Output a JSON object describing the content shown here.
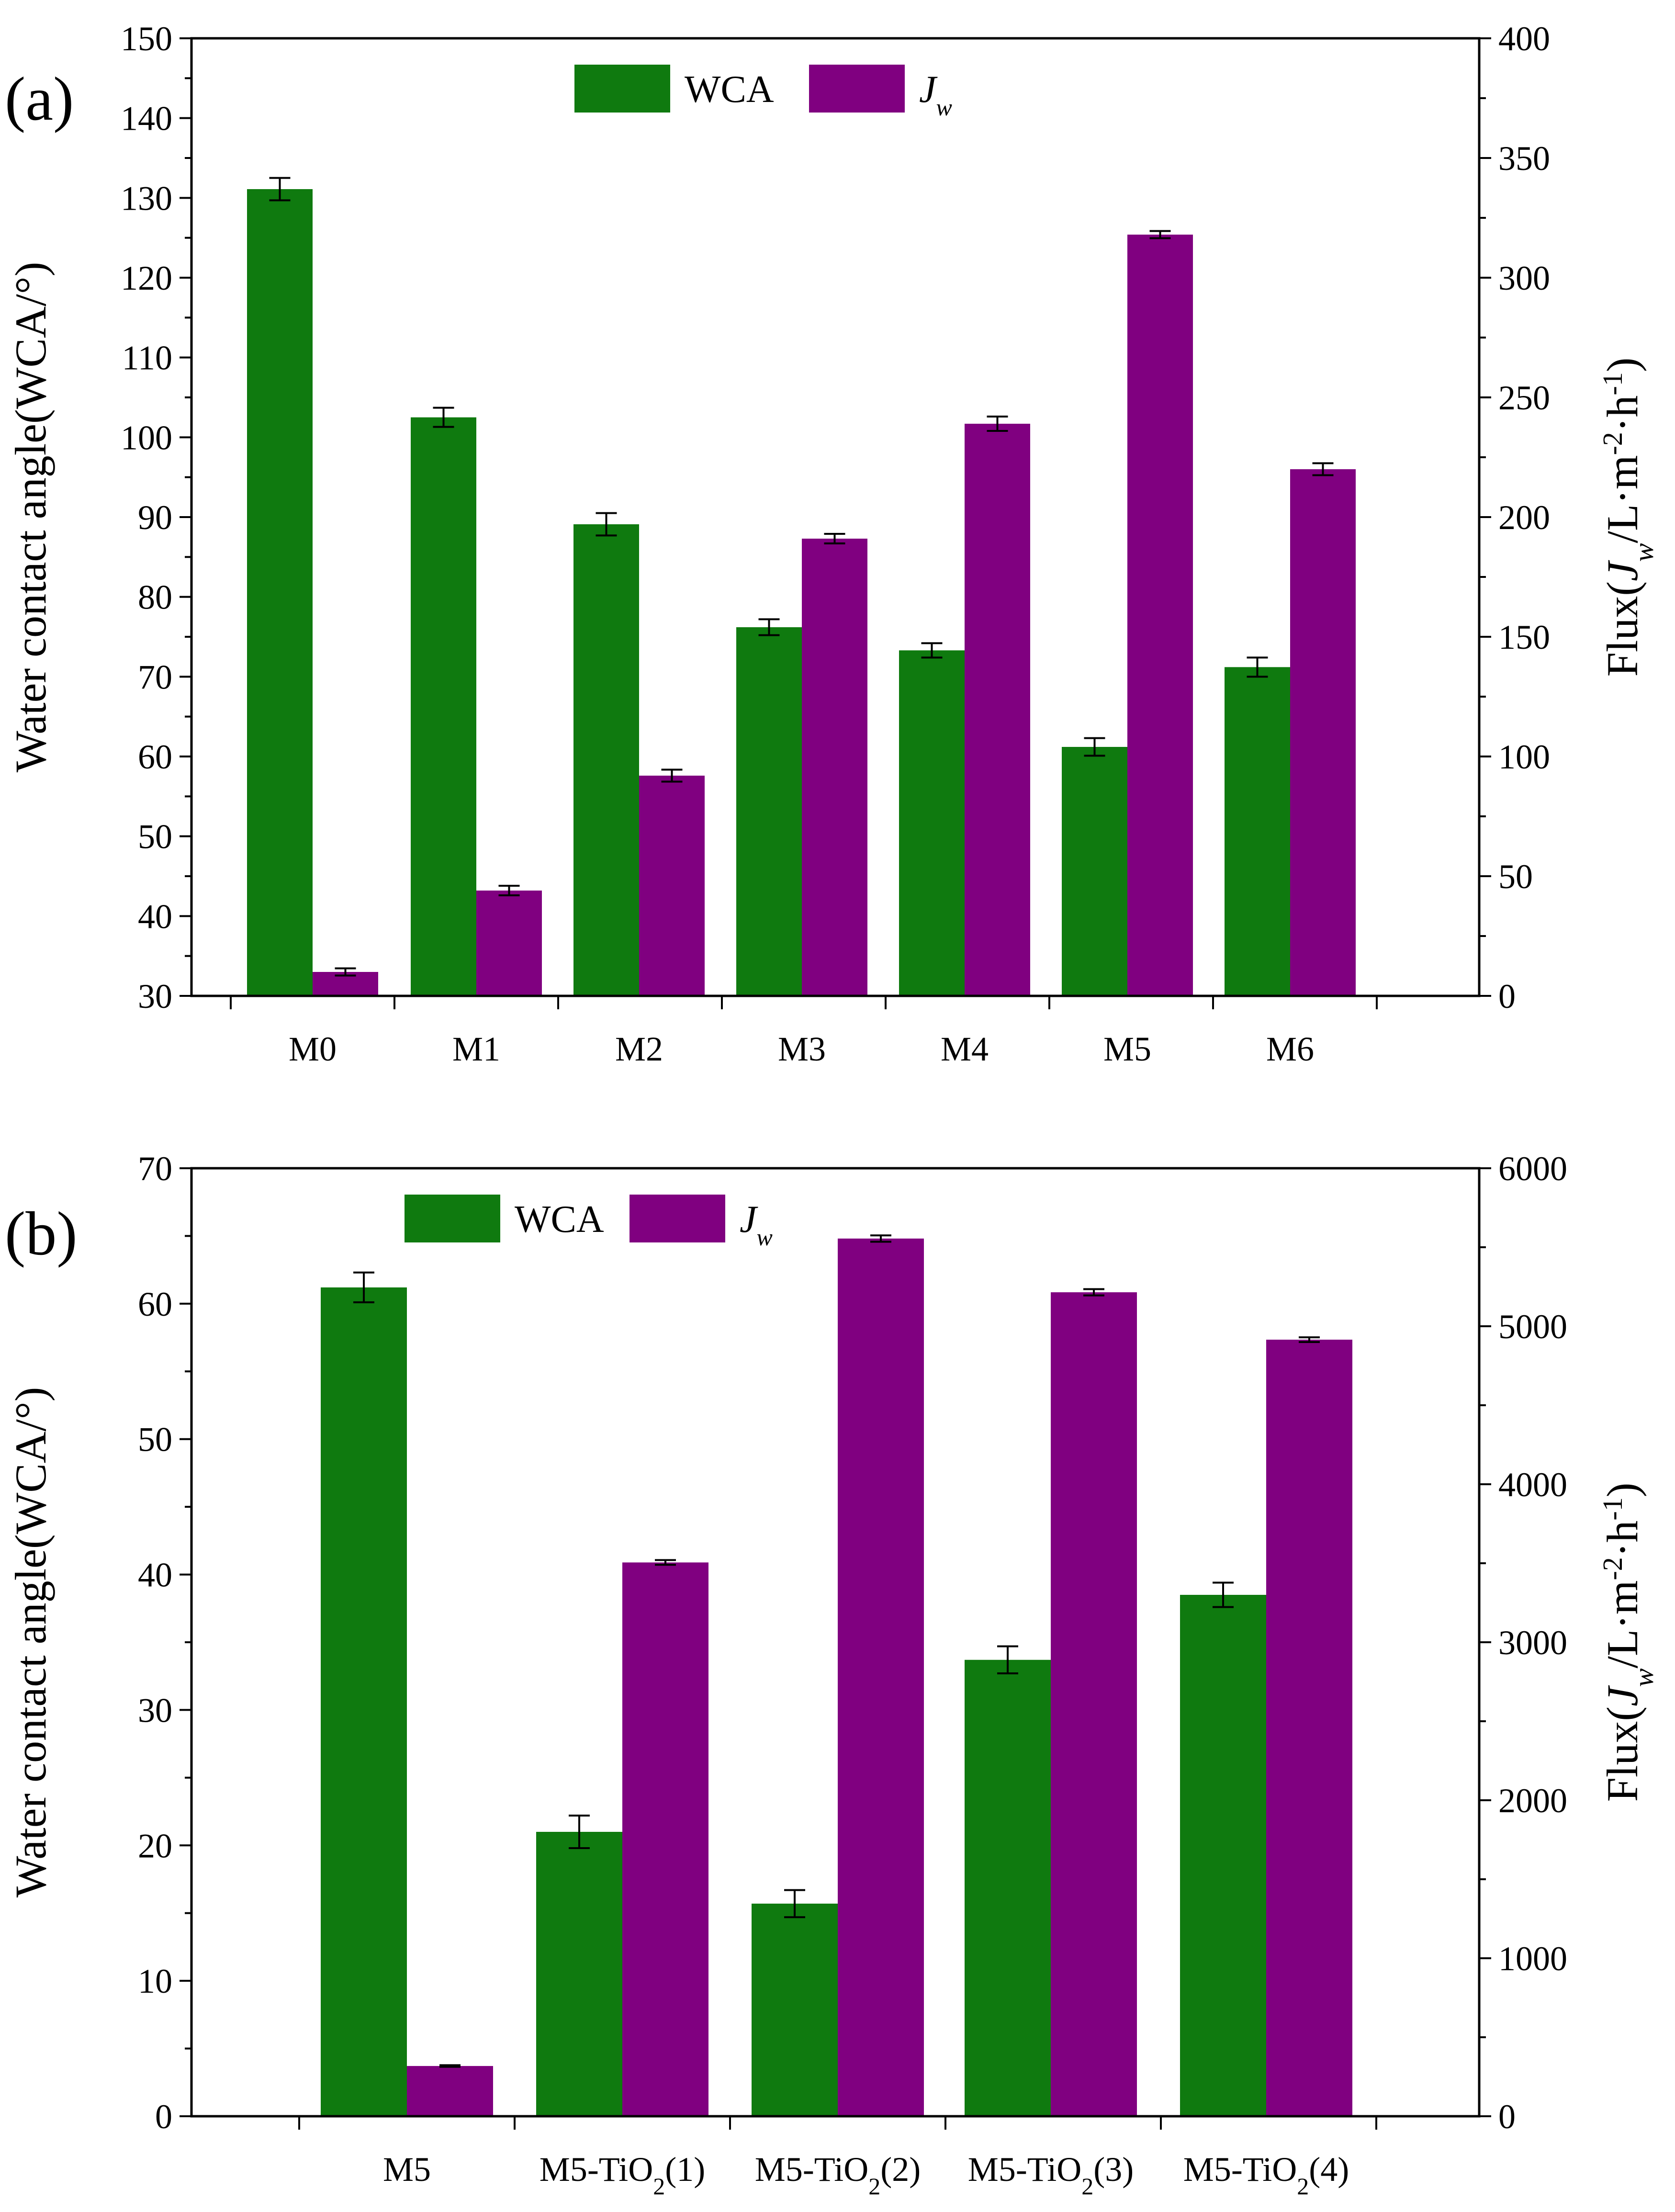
{
  "colors": {
    "wca": "#0f7a0f",
    "jw": "#800080",
    "axis": "#000000"
  },
  "chart_data": [
    {
      "type": "bar",
      "panel_label": "(a)",
      "categories": [
        "M0",
        "M1",
        "M2",
        "M3",
        "M4",
        "M5",
        "M6"
      ],
      "left_axis": {
        "label": "Water contact angle(WCA/°)",
        "ylim": [
          30,
          150
        ],
        "ticks": [
          30,
          40,
          50,
          60,
          70,
          80,
          90,
          100,
          110,
          120,
          130,
          140,
          150
        ]
      },
      "right_axis": {
        "label_prefix": "Flux(",
        "label_var": "J",
        "label_var_sub": "w",
        "label_unit": "/L·m",
        "label_exp1": "-2",
        "label_dot": "·h",
        "label_exp2": "-1",
        "label_suffix": ")",
        "ylim": [
          0,
          400
        ],
        "ticks": [
          0,
          50,
          100,
          150,
          200,
          250,
          300,
          350,
          400
        ]
      },
      "legend": [
        {
          "name": "WCA",
          "italic": false,
          "sub": ""
        },
        {
          "name": "J",
          "italic": true,
          "sub": "w"
        }
      ],
      "series": [
        {
          "name": "WCA",
          "axis": "left",
          "values": [
            131.1,
            102.5,
            89.1,
            76.2,
            73.3,
            61.2,
            71.2
          ],
          "errors": [
            1.4,
            1.2,
            1.4,
            1.0,
            0.9,
            1.1,
            1.2
          ]
        },
        {
          "name": "Jw",
          "axis": "right",
          "values": [
            10,
            44,
            92,
            191,
            239,
            318,
            220
          ],
          "errors": [
            1.5,
            2.0,
            2.5,
            2.0,
            3.0,
            1.5,
            2.5
          ]
        }
      ]
    },
    {
      "type": "bar",
      "panel_label": "(b)",
      "categories": [
        {
          "pre": "M5",
          "sub": "",
          "post": ""
        },
        {
          "pre": "M5-TiO",
          "sub": "2",
          "post": "(1)"
        },
        {
          "pre": "M5-TiO",
          "sub": "2",
          "post": "(2)"
        },
        {
          "pre": "M5-TiO",
          "sub": "2",
          "post": "(3)"
        },
        {
          "pre": "M5-TiO",
          "sub": "2",
          "post": "(4)"
        }
      ],
      "left_axis": {
        "label": "Water contact angle(WCA/°)",
        "ylim": [
          0,
          70
        ],
        "ticks": [
          0,
          10,
          20,
          30,
          40,
          50,
          60,
          70
        ]
      },
      "right_axis": {
        "label_prefix": "Flux(",
        "label_var": "J",
        "label_var_sub": "w",
        "label_unit": "/L·m",
        "label_exp1": "-2",
        "label_dot": "·h",
        "label_exp2": "-1",
        "label_suffix": ")",
        "ylim": [
          0,
          6000
        ],
        "ticks": [
          0,
          1000,
          2000,
          3000,
          4000,
          5000,
          6000
        ]
      },
      "legend": [
        {
          "name": "WCA",
          "italic": false,
          "sub": ""
        },
        {
          "name": "J",
          "italic": true,
          "sub": "w"
        }
      ],
      "series": [
        {
          "name": "WCA",
          "axis": "left",
          "values": [
            61.2,
            21.0,
            15.7,
            33.7,
            38.5
          ],
          "errors": [
            1.1,
            1.2,
            1.0,
            1.0,
            0.9
          ]
        },
        {
          "name": "Jw",
          "axis": "right",
          "values": [
            318,
            3505,
            5555,
            5215,
            4915
          ],
          "errors": [
            5,
            15,
            20,
            20,
            15
          ]
        }
      ]
    }
  ]
}
